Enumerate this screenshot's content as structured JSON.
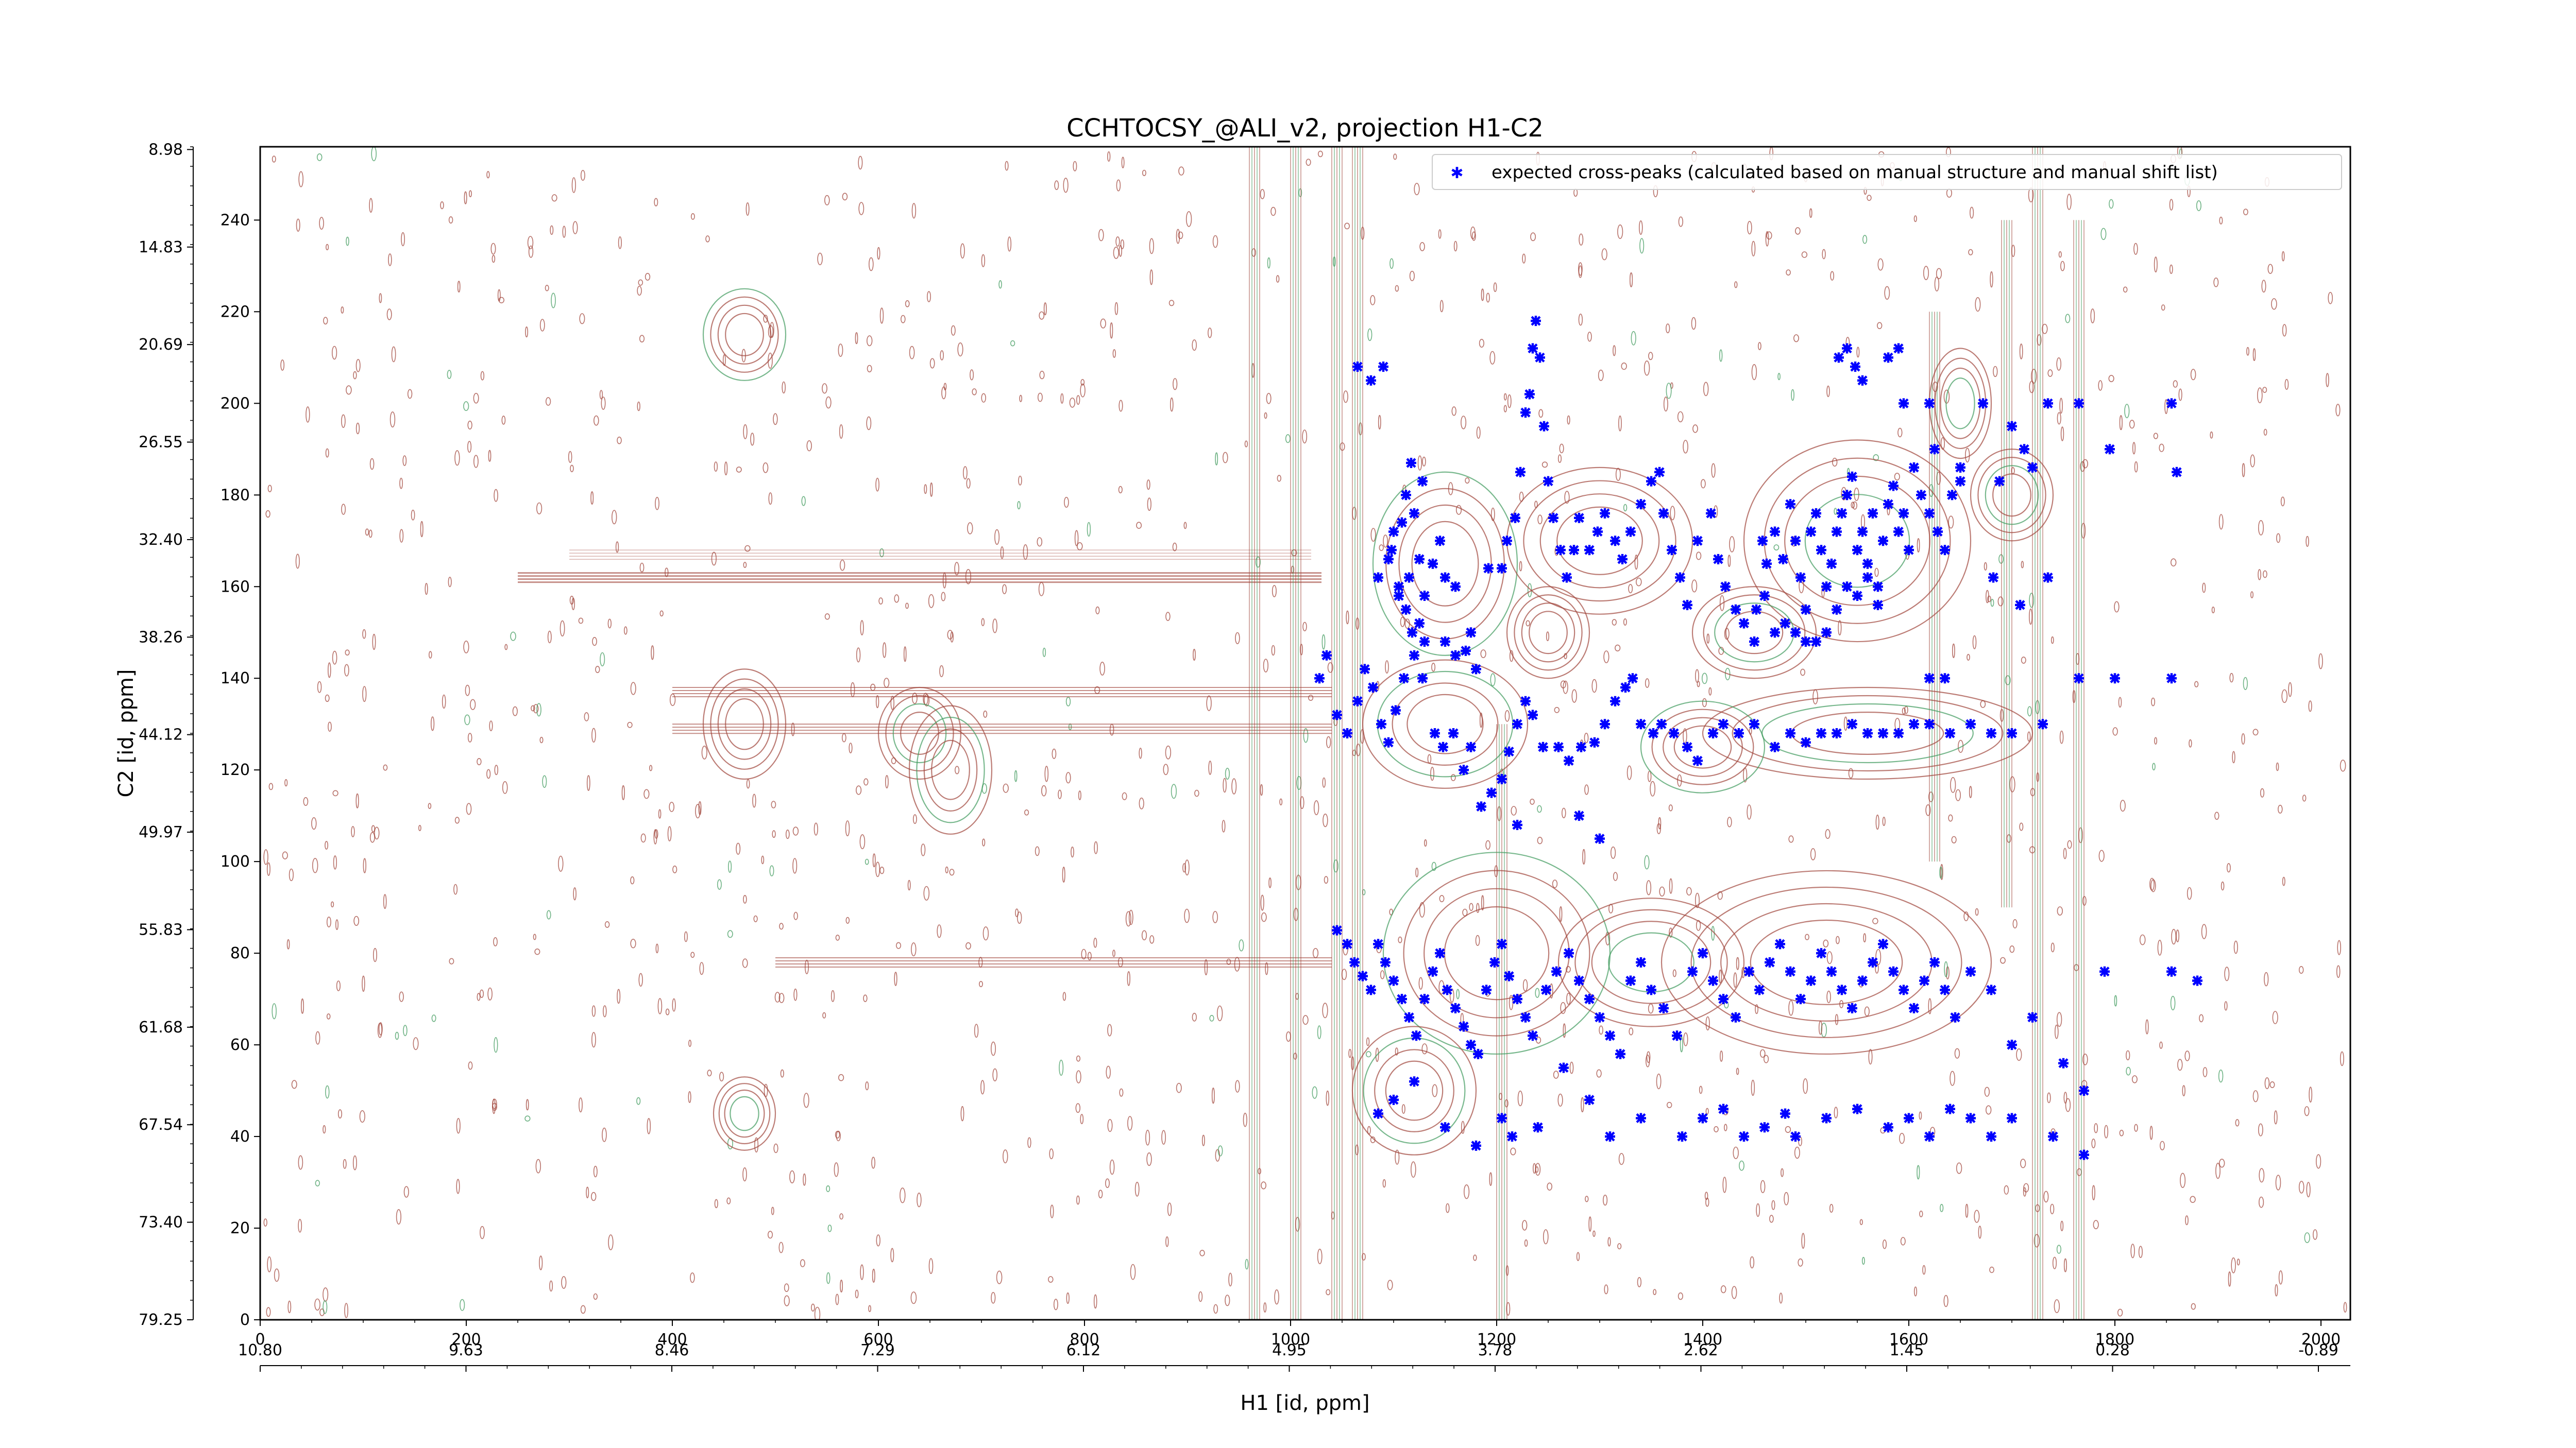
{
  "chart_data": {
    "type": "scatter",
    "title": "CCHTOCSY_@ALI_v2, projection H1-C2",
    "xlabel": "H1 [id, ppm]",
    "ylabel": "C2 [id, ppm]",
    "x_index_range": [
      0,
      2048
    ],
    "y_index_range": [
      0,
      256
    ],
    "x_index_ticks": [
      "0",
      "200",
      "400",
      "600",
      "800",
      "1000",
      "1200",
      "1400",
      "1600",
      "1800",
      "2000"
    ],
    "y_index_ticks": [
      "0",
      "20",
      "40",
      "60",
      "80",
      "100",
      "120",
      "140",
      "160",
      "180",
      "200",
      "220",
      "240"
    ],
    "x_ppm_ticks": [
      "10.80",
      "9.63",
      "8.46",
      "7.29",
      "6.12",
      "4.95",
      "3.78",
      "2.62",
      "1.45",
      "0.28",
      "-0.89"
    ],
    "y_ppm_ticks": [
      "79.25",
      "73.40",
      "67.54",
      "61.68",
      "55.83",
      "49.97",
      "44.12",
      "38.26",
      "32.40",
      "26.55",
      "20.69",
      "14.83",
      "8.98"
    ],
    "contour_colors": {
      "positive": "#a0443a",
      "negative": "#3f9a5c",
      "peaks": "#0000ff"
    },
    "legend": {
      "label": "expected cross-peaks (calculated based on manual structure and manual shift list)",
      "placement": "upper-right"
    },
    "series": [
      {
        "name": "expected cross-peaks (calculated based on manual structure and manual shift list)",
        "color": "#0000ff",
        "points": [
          [
            1065,
            208
          ],
          [
            1078,
            205
          ],
          [
            1090,
            208
          ],
          [
            1117,
            187
          ],
          [
            1112,
            180
          ],
          [
            1108,
            174
          ],
          [
            1120,
            176
          ],
          [
            1128,
            183
          ],
          [
            1100,
            172
          ],
          [
            1095,
            166
          ],
          [
            1085,
            162
          ],
          [
            1098,
            168
          ],
          [
            1105,
            160
          ],
          [
            1115,
            162
          ],
          [
            1125,
            166
          ],
          [
            1130,
            158
          ],
          [
            1138,
            165
          ],
          [
            1145,
            170
          ],
          [
            1150,
            162
          ],
          [
            1160,
            160
          ],
          [
            1105,
            158
          ],
          [
            1112,
            155
          ],
          [
            1118,
            150
          ],
          [
            1125,
            152
          ],
          [
            1130,
            148
          ],
          [
            1150,
            148
          ],
          [
            1160,
            145
          ],
          [
            1170,
            146
          ],
          [
            1180,
            142
          ],
          [
            1175,
            150
          ],
          [
            1192,
            164
          ],
          [
            1205,
            164
          ],
          [
            1210,
            170
          ],
          [
            1218,
            175
          ],
          [
            1223,
            185
          ],
          [
            1228,
            198
          ],
          [
            1232,
            202
          ],
          [
            1235,
            212
          ],
          [
            1238,
            218
          ],
          [
            1242,
            210
          ],
          [
            1246,
            195
          ],
          [
            1250,
            183
          ],
          [
            1255,
            175
          ],
          [
            1262,
            168
          ],
          [
            1268,
            162
          ],
          [
            1275,
            168
          ],
          [
            1280,
            175
          ],
          [
            1290,
            168
          ],
          [
            1298,
            172
          ],
          [
            1305,
            176
          ],
          [
            1315,
            170
          ],
          [
            1322,
            166
          ],
          [
            1330,
            172
          ],
          [
            1340,
            178
          ],
          [
            1350,
            183
          ],
          [
            1358,
            185
          ],
          [
            1362,
            176
          ],
          [
            1370,
            168
          ],
          [
            1378,
            162
          ],
          [
            1385,
            156
          ],
          [
            1395,
            170
          ],
          [
            1408,
            176
          ],
          [
            1415,
            166
          ],
          [
            1422,
            160
          ],
          [
            1432,
            155
          ],
          [
            1440,
            152
          ],
          [
            1450,
            148
          ],
          [
            1458,
            170
          ],
          [
            1462,
            165
          ],
          [
            1470,
            172
          ],
          [
            1478,
            166
          ],
          [
            1485,
            178
          ],
          [
            1490,
            170
          ],
          [
            1495,
            162
          ],
          [
            1500,
            155
          ],
          [
            1505,
            172
          ],
          [
            1510,
            176
          ],
          [
            1515,
            168
          ],
          [
            1520,
            160
          ],
          [
            1525,
            165
          ],
          [
            1530,
            172
          ],
          [
            1535,
            176
          ],
          [
            1540,
            180
          ],
          [
            1545,
            184
          ],
          [
            1550,
            168
          ],
          [
            1555,
            172
          ],
          [
            1560,
            165
          ],
          [
            1565,
            176
          ],
          [
            1570,
            160
          ],
          [
            1575,
            170
          ],
          [
            1580,
            178
          ],
          [
            1585,
            182
          ],
          [
            1590,
            172
          ],
          [
            1595,
            176
          ],
          [
            1600,
            168
          ],
          [
            1605,
            186
          ],
          [
            1612,
            180
          ],
          [
            1620,
            176
          ],
          [
            1628,
            172
          ],
          [
            1635,
            168
          ],
          [
            1642,
            180
          ],
          [
            1650,
            186
          ],
          [
            1532,
            210
          ],
          [
            1540,
            212
          ],
          [
            1548,
            208
          ],
          [
            1555,
            205
          ],
          [
            1580,
            210
          ],
          [
            1590,
            212
          ],
          [
            1595,
            200
          ],
          [
            1620,
            200
          ],
          [
            1625,
            190
          ],
          [
            1650,
            183
          ],
          [
            1672,
            200
          ],
          [
            1688,
            183
          ],
          [
            1700,
            195
          ],
          [
            1712,
            190
          ],
          [
            1720,
            186
          ],
          [
            1735,
            200
          ],
          [
            1765,
            200
          ],
          [
            1795,
            190
          ],
          [
            1860,
            185
          ],
          [
            1855,
            200
          ],
          [
            1452,
            155
          ],
          [
            1460,
            158
          ],
          [
            1470,
            150
          ],
          [
            1480,
            152
          ],
          [
            1490,
            150
          ],
          [
            1500,
            148
          ],
          [
            1510,
            148
          ],
          [
            1520,
            150
          ],
          [
            1530,
            155
          ],
          [
            1540,
            160
          ],
          [
            1550,
            158
          ],
          [
            1560,
            162
          ],
          [
            1570,
            156
          ],
          [
            1682,
            162
          ],
          [
            1708,
            156
          ],
          [
            1735,
            162
          ],
          [
            1028,
            140
          ],
          [
            1035,
            145
          ],
          [
            1045,
            132
          ],
          [
            1055,
            128
          ],
          [
            1065,
            135
          ],
          [
            1072,
            142
          ],
          [
            1080,
            138
          ],
          [
            1088,
            130
          ],
          [
            1095,
            126
          ],
          [
            1102,
            133
          ],
          [
            1110,
            140
          ],
          [
            1120,
            145
          ],
          [
            1128,
            140
          ],
          [
            1140,
            128
          ],
          [
            1148,
            125
          ],
          [
            1158,
            128
          ],
          [
            1168,
            120
          ],
          [
            1175,
            125
          ],
          [
            1185,
            112
          ],
          [
            1195,
            115
          ],
          [
            1205,
            118
          ],
          [
            1212,
            124
          ],
          [
            1220,
            130
          ],
          [
            1228,
            135
          ],
          [
            1235,
            132
          ],
          [
            1245,
            125
          ],
          [
            1260,
            125
          ],
          [
            1270,
            122
          ],
          [
            1282,
            125
          ],
          [
            1295,
            126
          ],
          [
            1305,
            130
          ],
          [
            1315,
            135
          ],
          [
            1325,
            138
          ],
          [
            1332,
            140
          ],
          [
            1340,
            130
          ],
          [
            1352,
            128
          ],
          [
            1360,
            130
          ],
          [
            1372,
            128
          ],
          [
            1385,
            125
          ],
          [
            1395,
            122
          ],
          [
            1410,
            128
          ],
          [
            1420,
            130
          ],
          [
            1435,
            128
          ],
          [
            1450,
            130
          ],
          [
            1470,
            125
          ],
          [
            1485,
            128
          ],
          [
            1500,
            126
          ],
          [
            1515,
            128
          ],
          [
            1530,
            128
          ],
          [
            1545,
            130
          ],
          [
            1560,
            128
          ],
          [
            1575,
            128
          ],
          [
            1590,
            128
          ],
          [
            1605,
            130
          ],
          [
            1620,
            130
          ],
          [
            1640,
            128
          ],
          [
            1660,
            130
          ],
          [
            1680,
            128
          ],
          [
            1700,
            128
          ],
          [
            1730,
            130
          ],
          [
            1765,
            140
          ],
          [
            1800,
            140
          ],
          [
            1855,
            140
          ],
          [
            1620,
            140
          ],
          [
            1635,
            140
          ],
          [
            1280,
            110
          ],
          [
            1300,
            105
          ],
          [
            1220,
            108
          ],
          [
            1045,
            85
          ],
          [
            1055,
            82
          ],
          [
            1062,
            78
          ],
          [
            1070,
            75
          ],
          [
            1078,
            72
          ],
          [
            1085,
            82
          ],
          [
            1092,
            78
          ],
          [
            1100,
            74
          ],
          [
            1108,
            70
          ],
          [
            1115,
            66
          ],
          [
            1122,
            62
          ],
          [
            1130,
            70
          ],
          [
            1138,
            76
          ],
          [
            1145,
            80
          ],
          [
            1152,
            72
          ],
          [
            1160,
            68
          ],
          [
            1168,
            64
          ],
          [
            1175,
            60
          ],
          [
            1182,
            58
          ],
          [
            1190,
            72
          ],
          [
            1198,
            78
          ],
          [
            1205,
            82
          ],
          [
            1212,
            75
          ],
          [
            1220,
            70
          ],
          [
            1228,
            66
          ],
          [
            1235,
            62
          ],
          [
            1248,
            72
          ],
          [
            1258,
            76
          ],
          [
            1270,
            80
          ],
          [
            1280,
            74
          ],
          [
            1290,
            70
          ],
          [
            1300,
            66
          ],
          [
            1310,
            62
          ],
          [
            1320,
            58
          ],
          [
            1330,
            74
          ],
          [
            1340,
            78
          ],
          [
            1350,
            72
          ],
          [
            1362,
            68
          ],
          [
            1375,
            62
          ],
          [
            1390,
            76
          ],
          [
            1400,
            80
          ],
          [
            1410,
            74
          ],
          [
            1420,
            70
          ],
          [
            1432,
            66
          ],
          [
            1445,
            76
          ],
          [
            1455,
            72
          ],
          [
            1465,
            78
          ],
          [
            1475,
            82
          ],
          [
            1485,
            76
          ],
          [
            1495,
            70
          ],
          [
            1505,
            74
          ],
          [
            1515,
            80
          ],
          [
            1525,
            76
          ],
          [
            1535,
            72
          ],
          [
            1545,
            68
          ],
          [
            1555,
            74
          ],
          [
            1565,
            78
          ],
          [
            1575,
            82
          ],
          [
            1585,
            76
          ],
          [
            1595,
            72
          ],
          [
            1605,
            68
          ],
          [
            1615,
            74
          ],
          [
            1625,
            78
          ],
          [
            1635,
            72
          ],
          [
            1645,
            66
          ],
          [
            1660,
            76
          ],
          [
            1680,
            72
          ],
          [
            1700,
            60
          ],
          [
            1720,
            66
          ],
          [
            1750,
            56
          ],
          [
            1770,
            50
          ],
          [
            1790,
            76
          ],
          [
            1855,
            76
          ],
          [
            1880,
            74
          ],
          [
            1085,
            45
          ],
          [
            1100,
            48
          ],
          [
            1120,
            52
          ],
          [
            1150,
            42
          ],
          [
            1180,
            38
          ],
          [
            1205,
            44
          ],
          [
            1215,
            40
          ],
          [
            1240,
            42
          ],
          [
            1265,
            55
          ],
          [
            1290,
            48
          ],
          [
            1310,
            40
          ],
          [
            1340,
            44
          ],
          [
            1380,
            40
          ],
          [
            1400,
            44
          ],
          [
            1420,
            46
          ],
          [
            1440,
            40
          ],
          [
            1460,
            42
          ],
          [
            1480,
            45
          ],
          [
            1490,
            40
          ],
          [
            1520,
            44
          ],
          [
            1550,
            46
          ],
          [
            1580,
            42
          ],
          [
            1600,
            44
          ],
          [
            1620,
            40
          ],
          [
            1640,
            46
          ],
          [
            1660,
            44
          ],
          [
            1680,
            40
          ],
          [
            1700,
            44
          ],
          [
            1740,
            40
          ],
          [
            1770,
            36
          ]
        ]
      }
    ]
  }
}
